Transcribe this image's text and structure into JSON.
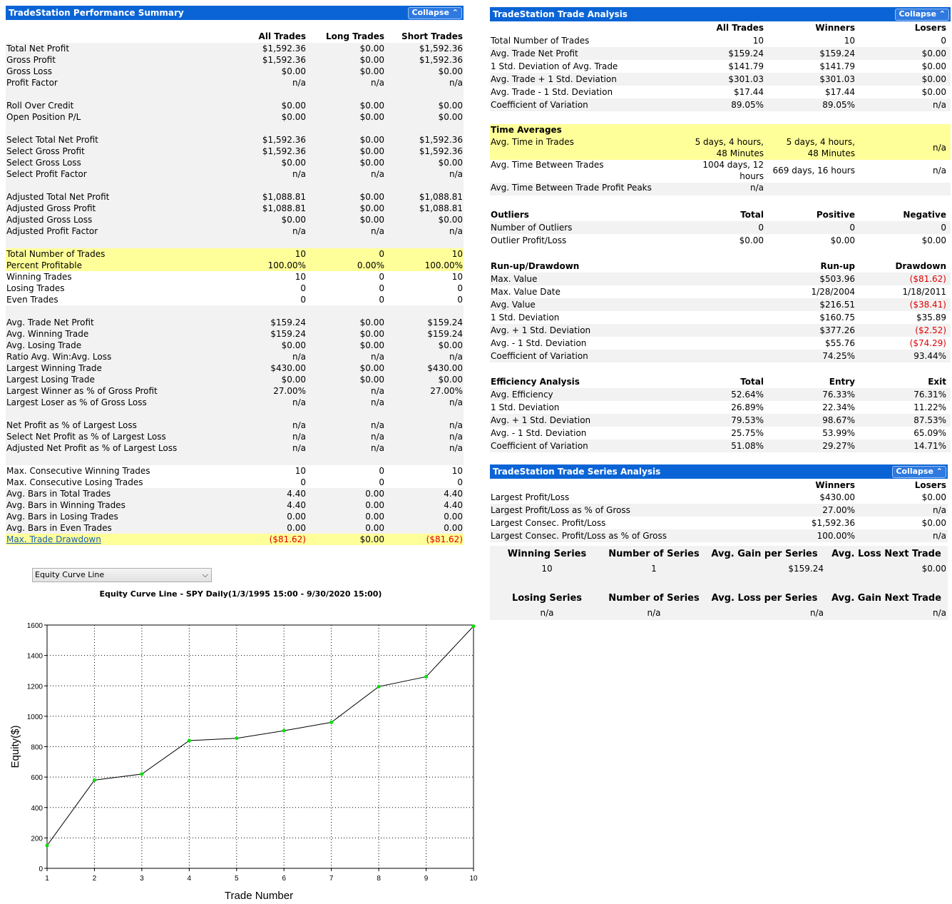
{
  "left": {
    "title": "TradeStation Performance Summary",
    "collapse": "Collapse",
    "columns": [
      "All Trades",
      "Long Trades",
      "Short Trades"
    ],
    "rows": [
      {
        "label": "Total Net Profit",
        "v": [
          "$1,592.36",
          "$0.00",
          "$1,592.36"
        ]
      },
      {
        "label": "Gross Profit",
        "v": [
          "$1,592.36",
          "$0.00",
          "$1,592.36"
        ]
      },
      {
        "label": "Gross Loss",
        "v": [
          "$0.00",
          "$0.00",
          "$0.00"
        ]
      },
      {
        "label": "Profit Factor",
        "v": [
          "n/a",
          "n/a",
          "n/a"
        ]
      },
      {
        "label": "Roll Over Credit",
        "v": [
          "$0.00",
          "$0.00",
          "$0.00"
        ]
      },
      {
        "label": "Open Position P/L",
        "v": [
          "$0.00",
          "$0.00",
          "$0.00"
        ]
      },
      {
        "label": "Select Total Net Profit",
        "v": [
          "$1,592.36",
          "$0.00",
          "$1,592.36"
        ]
      },
      {
        "label": "Select Gross Profit",
        "v": [
          "$1,592.36",
          "$0.00",
          "$1,592.36"
        ]
      },
      {
        "label": "Select Gross Loss",
        "v": [
          "$0.00",
          "$0.00",
          "$0.00"
        ]
      },
      {
        "label": "Select Profit Factor",
        "v": [
          "n/a",
          "n/a",
          "n/a"
        ]
      },
      {
        "label": "Adjusted Total Net Profit",
        "v": [
          "$1,088.81",
          "$0.00",
          "$1,088.81"
        ]
      },
      {
        "label": "Adjusted Gross Profit",
        "v": [
          "$1,088.81",
          "$0.00",
          "$1,088.81"
        ]
      },
      {
        "label": "Adjusted Gross Loss",
        "v": [
          "$0.00",
          "$0.00",
          "$0.00"
        ]
      },
      {
        "label": "Adjusted Profit Factor",
        "v": [
          "n/a",
          "n/a",
          "n/a"
        ]
      },
      {
        "label": "Total Number of Trades",
        "v": [
          "10",
          "0",
          "10"
        ]
      },
      {
        "label": "Percent Profitable",
        "v": [
          "100.00%",
          "0.00%",
          "100.00%"
        ]
      },
      {
        "label": "Winning Trades",
        "v": [
          "10",
          "0",
          "10"
        ]
      },
      {
        "label": "Losing Trades",
        "v": [
          "0",
          "0",
          "0"
        ]
      },
      {
        "label": "Even Trades",
        "v": [
          "0",
          "0",
          "0"
        ]
      },
      {
        "label": "Avg. Trade Net Profit",
        "v": [
          "$159.24",
          "$0.00",
          "$159.24"
        ]
      },
      {
        "label": "Avg. Winning Trade",
        "v": [
          "$159.24",
          "$0.00",
          "$159.24"
        ]
      },
      {
        "label": "Avg. Losing Trade",
        "v": [
          "$0.00",
          "$0.00",
          "$0.00"
        ]
      },
      {
        "label": "Ratio Avg. Win:Avg. Loss",
        "v": [
          "n/a",
          "n/a",
          "n/a"
        ]
      },
      {
        "label": "Largest Winning Trade",
        "v": [
          "$430.00",
          "$0.00",
          "$430.00"
        ]
      },
      {
        "label": "Largest Losing Trade",
        "v": [
          "$0.00",
          "$0.00",
          "$0.00"
        ]
      },
      {
        "label": "Largest Winner as % of Gross Profit",
        "v": [
          "27.00%",
          "n/a",
          "27.00%"
        ]
      },
      {
        "label": "Largest Loser as % of Gross Loss",
        "v": [
          "n/a",
          "n/a",
          "n/a"
        ]
      },
      {
        "label": "Net Profit as % of Largest Loss",
        "v": [
          "n/a",
          "n/a",
          "n/a"
        ]
      },
      {
        "label": "Select Net Profit as % of Largest Loss",
        "v": [
          "n/a",
          "n/a",
          "n/a"
        ]
      },
      {
        "label": "Adjusted Net Profit as % of Largest Loss",
        "v": [
          "n/a",
          "n/a",
          "n/a"
        ]
      },
      {
        "label": "Max. Consecutive Winning Trades",
        "v": [
          "10",
          "0",
          "10"
        ]
      },
      {
        "label": "Max. Consecutive Losing Trades",
        "v": [
          "0",
          "0",
          "0"
        ]
      },
      {
        "label": "Avg. Bars in Total Trades",
        "v": [
          "4.40",
          "0.00",
          "4.40"
        ]
      },
      {
        "label": "Avg. Bars in Winning Trades",
        "v": [
          "4.40",
          "0.00",
          "4.40"
        ]
      },
      {
        "label": "Avg. Bars in Losing Trades",
        "v": [
          "0.00",
          "0.00",
          "0.00"
        ]
      },
      {
        "label": "Avg. Bars in Even Trades",
        "v": [
          "0.00",
          "0.00",
          "0.00"
        ]
      },
      {
        "label": "Max. Trade Drawdown",
        "v": [
          "($81.62)",
          "$0.00",
          "($81.62)"
        ]
      }
    ]
  },
  "dropdown": {
    "selected": "Equity Curve Line"
  },
  "chart_title": "Equity Curve Line - SPY Daily(1/3/1995 15:00 - 9/30/2020 15:00)",
  "chart_data": {
    "type": "line",
    "title": "Equity Curve Line - SPY Daily(1/3/1995 15:00 - 9/30/2020 15:00)",
    "xlabel": "Trade Number",
    "ylabel": "Equity($)",
    "x": [
      1,
      2,
      3,
      4,
      5,
      6,
      7,
      8,
      9,
      10
    ],
    "values": [
      150,
      580,
      620,
      840,
      855,
      905,
      960,
      1195,
      1260,
      1592.36
    ],
    "xlim": [
      1,
      10
    ],
    "ylim": [
      0,
      1600
    ],
    "yticks": [
      0,
      200,
      400,
      600,
      800,
      1000,
      1200,
      1400,
      1600
    ],
    "grid": true,
    "line_color": "#000000",
    "marker_color": "#00e000"
  },
  "trade_analysis": {
    "title": "TradeStation Trade Analysis",
    "collapse": "Collapse",
    "columns": [
      "All Trades",
      "Winners",
      "Losers"
    ],
    "rows": [
      {
        "label": "Total Number of Trades",
        "v": [
          "10",
          "10",
          "0"
        ]
      },
      {
        "label": "Avg. Trade Net Profit",
        "v": [
          "$159.24",
          "$159.24",
          "$0.00"
        ]
      },
      {
        "label": "1 Std. Deviation of Avg. Trade",
        "v": [
          "$141.79",
          "$141.79",
          "$0.00"
        ]
      },
      {
        "label": "Avg. Trade + 1 Std. Deviation",
        "v": [
          "$301.03",
          "$301.03",
          "$0.00"
        ]
      },
      {
        "label": "Avg. Trade - 1 Std. Deviation",
        "v": [
          "$17.44",
          "$17.44",
          "$0.00"
        ]
      },
      {
        "label": "Coefficient of Variation",
        "v": [
          "89.05%",
          "89.05%",
          "n/a"
        ]
      }
    ],
    "time_averages": {
      "heading": "Time Averages",
      "avg_time_label": "Avg. Time in Trades",
      "avg_time_all_1": "5 days, 4 hours,",
      "avg_time_all_2": "48 Minutes",
      "avg_time_win_1": "5 days, 4 hours,",
      "avg_time_win_2": "48 Minutes",
      "avg_time_lose": "n/a",
      "between_label": "Avg. Time Between Trades",
      "between_all_1": "1004 days, 12",
      "between_all_2": "hours",
      "between_win": "669 days, 16 hours",
      "between_lose": "n/a",
      "peaks_label": "Avg. Time Between Trade Profit Peaks",
      "peaks_val": "n/a"
    },
    "outliers": {
      "heading": "Outliers",
      "columns": [
        "Total",
        "Positive",
        "Negative"
      ],
      "rows": [
        {
          "label": "Number of Outliers",
          "v": [
            "0",
            "0",
            "0"
          ]
        },
        {
          "label": "Outlier Profit/Loss",
          "v": [
            "$0.00",
            "$0.00",
            "$0.00"
          ]
        }
      ]
    },
    "runup": {
      "heading": "Run-up/Drawdown",
      "columns": [
        "Run-up",
        "Drawdown"
      ],
      "rows": [
        {
          "label": "Max. Value",
          "v": [
            "$503.96",
            "($81.62)"
          ]
        },
        {
          "label": "Max. Value Date",
          "v": [
            "1/28/2004",
            "1/18/2011"
          ]
        },
        {
          "label": "Avg. Value",
          "v": [
            "$216.51",
            "($38.41)"
          ]
        },
        {
          "label": "1 Std. Deviation",
          "v": [
            "$160.75",
            "$35.89"
          ]
        },
        {
          "label": "Avg. + 1 Std. Deviation",
          "v": [
            "$377.26",
            "($2.52)"
          ]
        },
        {
          "label": "Avg. - 1 Std. Deviation",
          "v": [
            "$55.76",
            "($74.29)"
          ]
        },
        {
          "label": "Coefficient of Variation",
          "v": [
            "74.25%",
            "93.44%"
          ]
        }
      ]
    },
    "efficiency": {
      "heading": "Efficiency Analysis",
      "columns": [
        "Total",
        "Entry",
        "Exit"
      ],
      "rows": [
        {
          "label": "Avg. Efficiency",
          "v": [
            "52.64%",
            "76.33%",
            "76.31%"
          ]
        },
        {
          "label": "1 Std. Deviation",
          "v": [
            "26.89%",
            "22.34%",
            "11.22%"
          ]
        },
        {
          "label": "Avg. + 1 Std. Deviation",
          "v": [
            "79.53%",
            "98.67%",
            "87.53%"
          ]
        },
        {
          "label": "Avg. - 1 Std. Deviation",
          "v": [
            "25.75%",
            "53.99%",
            "65.09%"
          ]
        },
        {
          "label": "Coefficient of Variation",
          "v": [
            "51.08%",
            "29.27%",
            "14.71%"
          ]
        }
      ]
    }
  },
  "series": {
    "title": "TradeStation Trade Series Analysis",
    "collapse": "Collapse",
    "columns": [
      "Winners",
      "Losers"
    ],
    "rows": [
      {
        "label": "Largest Profit/Loss",
        "v": [
          "$430.00",
          "$0.00"
        ]
      },
      {
        "label": "Largest Profit/Loss as % of Gross",
        "v": [
          "27.00%",
          "n/a"
        ]
      },
      {
        "label": "Largest Consec. Profit/Loss",
        "v": [
          "$1,592.36",
          "$0.00"
        ]
      },
      {
        "label": "Largest Consec. Profit/Loss as % of Gross",
        "v": [
          "100.00%",
          "n/a"
        ]
      }
    ],
    "win_headers": [
      "Winning Series",
      "Number of Series",
      "Avg. Gain per Series",
      "Avg. Loss Next Trade"
    ],
    "win_values": [
      "10",
      "1",
      "$159.24",
      "$0.00"
    ],
    "lose_headers": [
      "Losing Series",
      "Number of Series",
      "Avg. Loss per Series",
      "Avg. Gain Next Trade"
    ],
    "lose_values": [
      "n/a",
      "n/a",
      "n/a",
      "n/a"
    ]
  }
}
